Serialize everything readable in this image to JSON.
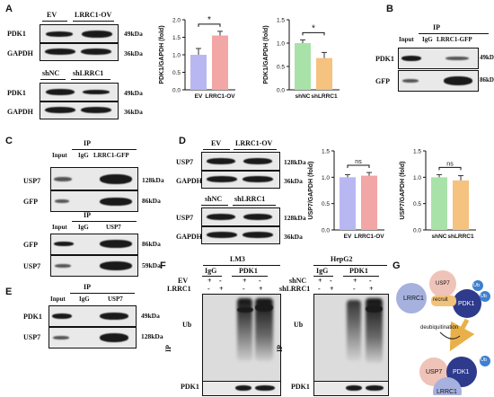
{
  "panels": {
    "A": "A",
    "B": "B",
    "C": "C",
    "D": "D",
    "E": "E",
    "F": "F",
    "G": "G"
  },
  "common": {
    "EV": "EV",
    "LRRC1_OV": "LRRC1-OV",
    "shNC": "shNC",
    "shLRRC1": "shLRRC1",
    "PDK1": "PDK1",
    "GAPDH": "GAPDH",
    "USP7": "USP7",
    "GFP": "GFP",
    "Input": "Input",
    "IgG": "IgG",
    "IP": "IP",
    "LRRC1_GFP": "LRRC1-GFP",
    "Ub": "Ub",
    "LM3": "LM3",
    "HepG2": "HepG2",
    "LRRC1": "LRRC1",
    "plus": "+",
    "minus": "-",
    "kDa49": "49kDa",
    "kDa36": "36kDa",
    "kDa86": "86kDa",
    "kDa128": "128kDa",
    "kDa59": "59kDa",
    "star": "*",
    "ns": "ns"
  },
  "diagram": {
    "recruit": "recruit",
    "deubiquitination": "deubiquitination",
    "Ub": "Ub",
    "USP7": "USP7",
    "LRRC1": "LRRC1",
    "PDK1": "PDK1"
  },
  "colors": {
    "ev": "#b9b7f2",
    "ov": "#f2a6a6",
    "shnc": "#a9e2a8",
    "shl": "#f5c27f"
  },
  "chart_data": [
    {
      "type": "bar",
      "ylabel": "PDK1/GAPDH (fold)",
      "categories": [
        "EV",
        "LRRC1-OV"
      ],
      "values": [
        1.0,
        1.55
      ],
      "errors": [
        0.18,
        0.12
      ],
      "ylim": [
        0,
        2.0
      ],
      "yticks": [
        0.0,
        0.5,
        1.0,
        1.5,
        2.0
      ],
      "significance": "*"
    },
    {
      "type": "bar",
      "ylabel": "PDK1/GAPDH (fold)",
      "categories": [
        "shNC",
        "shLRRC1"
      ],
      "values": [
        1.0,
        0.68
      ],
      "errors": [
        0.07,
        0.12
      ],
      "ylim": [
        0,
        1.5
      ],
      "yticks": [
        0.0,
        0.5,
        1.0,
        1.5
      ],
      "significance": "*"
    },
    {
      "type": "bar",
      "ylabel": "USP7/GAPDH (fold)",
      "categories": [
        "EV",
        "LRRC1-OV"
      ],
      "values": [
        1.0,
        1.03
      ],
      "errors": [
        0.05,
        0.06
      ],
      "ylim": [
        0,
        1.5
      ],
      "yticks": [
        0.0,
        0.5,
        1.0,
        1.5
      ],
      "significance": "ns"
    },
    {
      "type": "bar",
      "ylabel": "USP7/GAPDH (fold)",
      "categories": [
        "shNC",
        "shLRRC1"
      ],
      "values": [
        1.0,
        0.94
      ],
      "errors": [
        0.05,
        0.09
      ],
      "ylim": [
        0,
        1.5
      ],
      "yticks": [
        0.0,
        0.5,
        1.0,
        1.5
      ],
      "significance": "ns"
    }
  ]
}
